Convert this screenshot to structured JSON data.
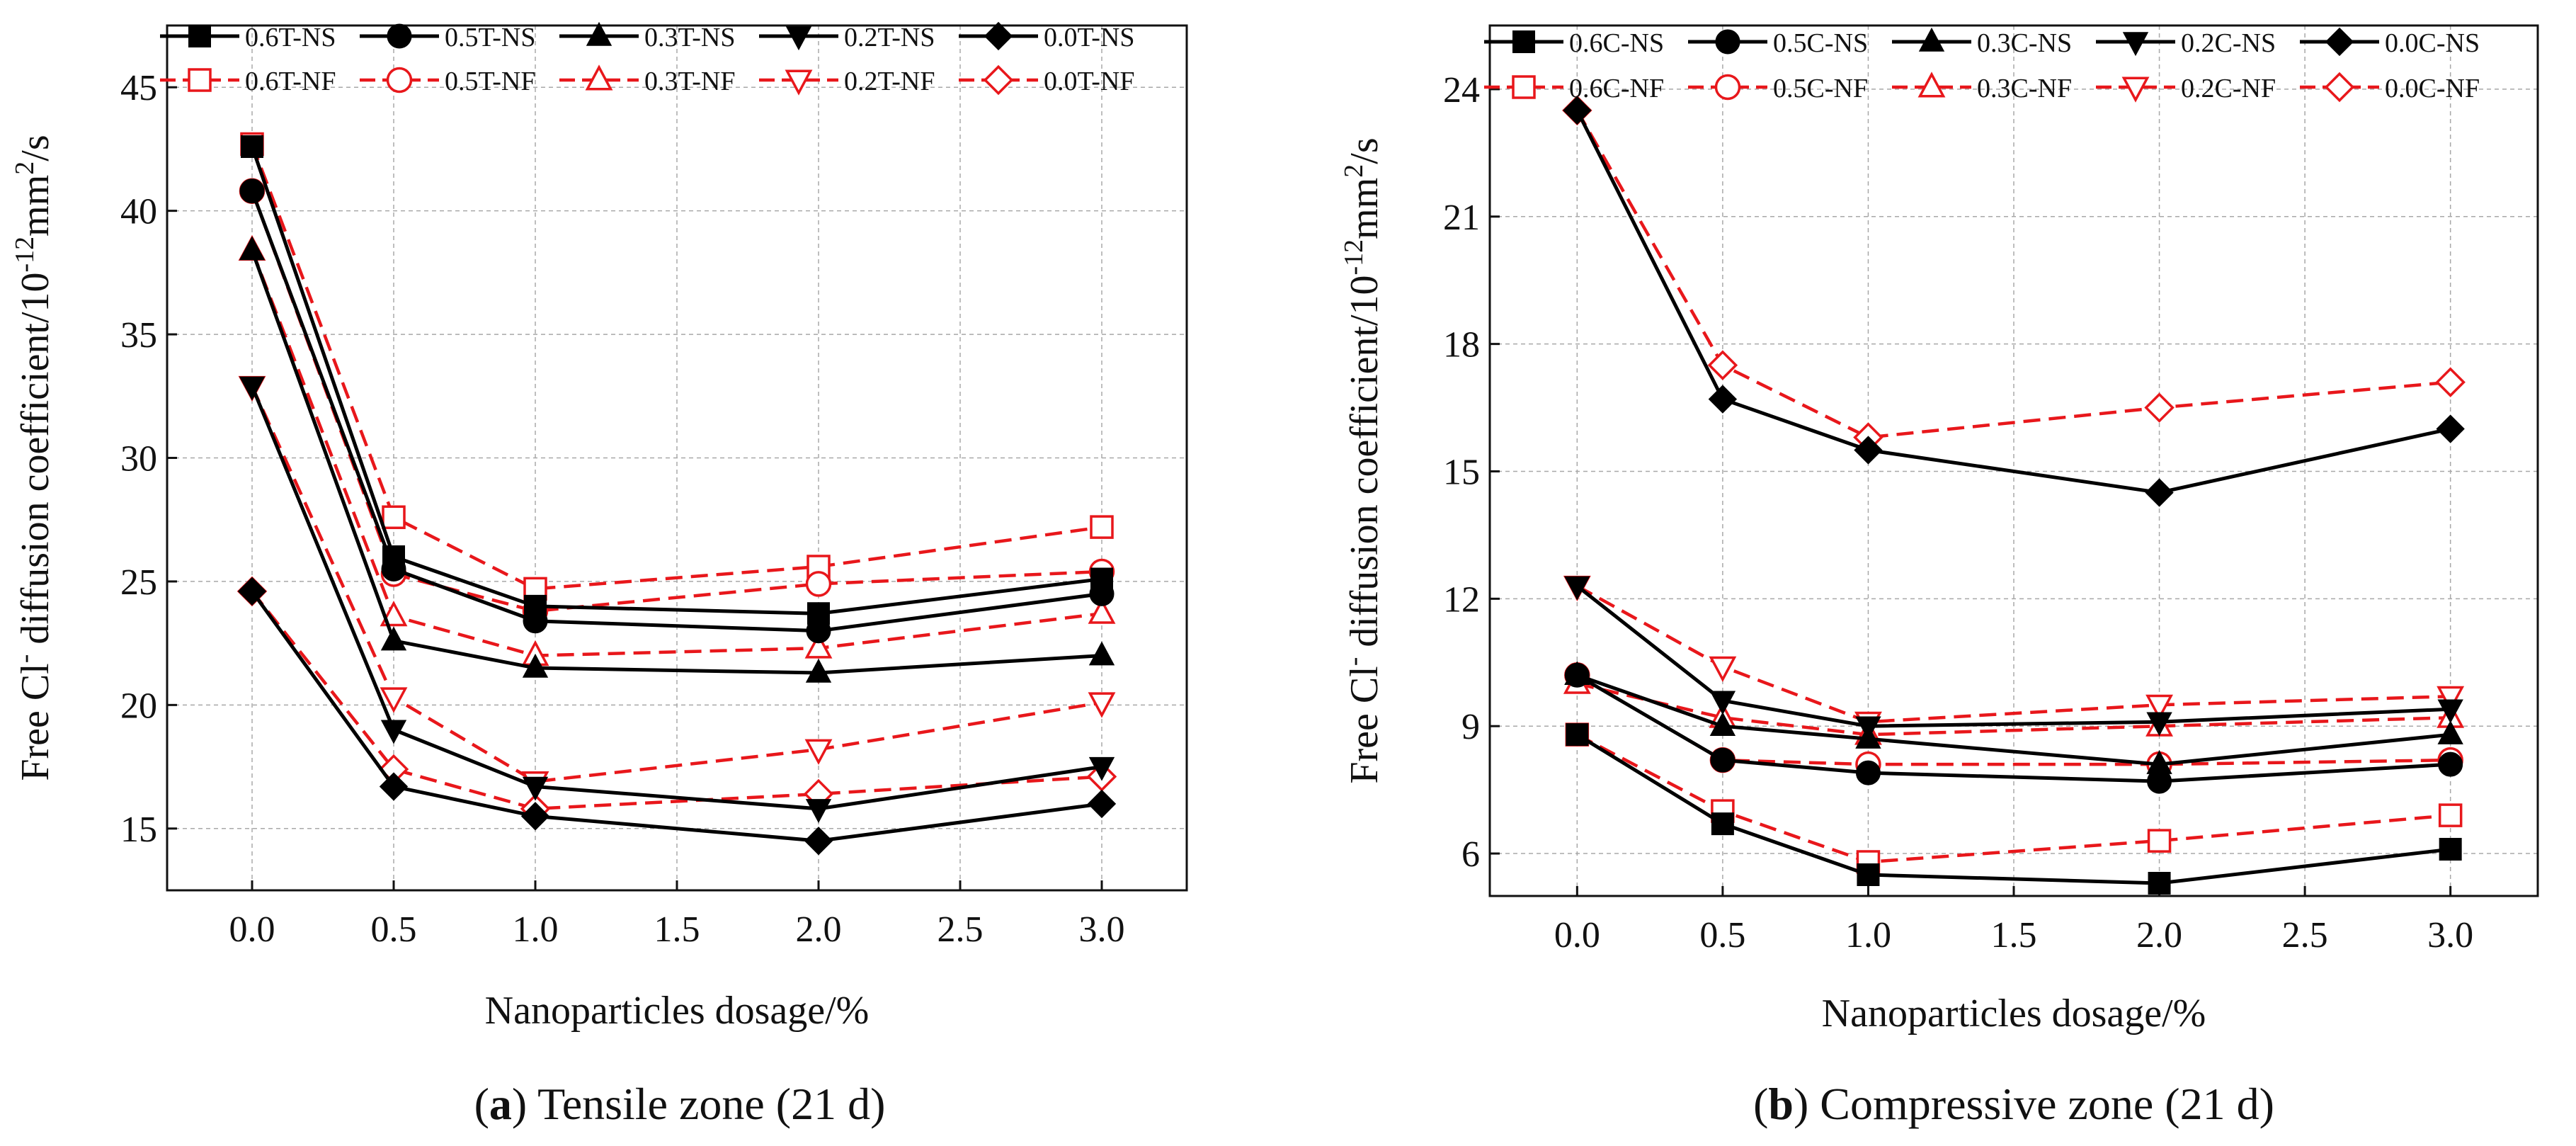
{
  "chart_data": [
    {
      "panel_label": "a",
      "caption": "Tensile zone (21 d)",
      "type": "line",
      "xlabel": "Nanoparticles dosage/%",
      "ylabel_text": "Free Cl",
      "ylabel_sup": "-",
      "ylabel_text2": " diffusion coefficient/10",
      "ylabel_sup2": "-12",
      "ylabel_text3": "mm",
      "ylabel_sup3": "2",
      "ylabel_text4": "/s",
      "x": [
        0.0,
        0.5,
        1.0,
        2.0,
        3.0
      ],
      "xlim": [
        -0.3,
        3.3
      ],
      "xticks": [
        0.0,
        0.5,
        1.0,
        1.5,
        2.0,
        2.5,
        3.0
      ],
      "xtick_labels": [
        "0.0",
        "0.5",
        "1.0",
        "1.5",
        "2.0",
        "2.5",
        "3.0"
      ],
      "ylim": [
        12.5,
        47.5
      ],
      "yticks": [
        15,
        20,
        25,
        30,
        35,
        40,
        45
      ],
      "ytick_labels": [
        "15",
        "20",
        "25",
        "30",
        "35",
        "40",
        "45"
      ],
      "series": [
        {
          "name": "0.6T-NS",
          "marker": "square",
          "style": "solid",
          "values": [
            42.6,
            26.0,
            24.0,
            23.7,
            25.1
          ]
        },
        {
          "name": "0.5T-NS",
          "marker": "circle",
          "style": "solid",
          "values": [
            40.8,
            25.5,
            23.4,
            23.0,
            24.5
          ]
        },
        {
          "name": "0.3T-NS",
          "marker": "triangle",
          "style": "solid",
          "values": [
            38.4,
            22.6,
            21.5,
            21.3,
            22.0
          ]
        },
        {
          "name": "0.2T-NS",
          "marker": "triangle-down",
          "style": "solid",
          "values": [
            32.9,
            19.0,
            16.7,
            15.8,
            17.5
          ]
        },
        {
          "name": "0.0T-NS",
          "marker": "diamond",
          "style": "solid",
          "values": [
            24.6,
            16.7,
            15.5,
            14.5,
            16.0
          ]
        },
        {
          "name": "0.6T-NF",
          "marker": "square",
          "style": "dashed",
          "values": [
            42.7,
            27.6,
            24.7,
            25.6,
            27.2
          ]
        },
        {
          "name": "0.5T-NF",
          "marker": "circle",
          "style": "dashed",
          "values": [
            40.8,
            25.3,
            23.8,
            24.9,
            25.4
          ]
        },
        {
          "name": "0.3T-NF",
          "marker": "triangle",
          "style": "dashed",
          "values": [
            38.4,
            23.6,
            22.0,
            22.3,
            23.7
          ]
        },
        {
          "name": "0.2T-NF",
          "marker": "triangle-down",
          "style": "dashed",
          "values": [
            32.9,
            20.3,
            16.9,
            18.2,
            20.1
          ]
        },
        {
          "name": "0.0T-NF",
          "marker": "diamond",
          "style": "dashed",
          "values": [
            24.6,
            17.4,
            15.8,
            16.4,
            17.1
          ]
        }
      ]
    },
    {
      "panel_label": "b",
      "caption": "Compressive zone (21 d)",
      "type": "line",
      "xlabel": "Nanoparticles dosage/%",
      "ylabel_text": "Free Cl",
      "ylabel_sup": "-",
      "ylabel_text2": " diffusion coefficient/10",
      "ylabel_sup2": "-12",
      "ylabel_text3": "mm",
      "ylabel_sup3": "2",
      "ylabel_text4": "/s",
      "x": [
        0.0,
        0.5,
        1.0,
        2.0,
        3.0
      ],
      "xlim": [
        -0.3,
        3.3
      ],
      "xticks": [
        0.0,
        0.5,
        1.0,
        1.5,
        2.0,
        2.5,
        3.0
      ],
      "xtick_labels": [
        "0.0",
        "0.5",
        "1.0",
        "1.5",
        "2.0",
        "2.5",
        "3.0"
      ],
      "ylim": [
        5.0,
        25.5
      ],
      "yticks": [
        6,
        9,
        12,
        15,
        18,
        21,
        24
      ],
      "ytick_labels": [
        "6",
        "9",
        "12",
        "15",
        "18",
        "21",
        "24"
      ],
      "series": [
        {
          "name": "0.6C-NS",
          "marker": "square",
          "style": "solid",
          "values": [
            8.8,
            6.7,
            5.5,
            5.3,
            6.1
          ]
        },
        {
          "name": "0.5C-NS",
          "marker": "circle",
          "style": "solid",
          "values": [
            10.2,
            8.2,
            7.9,
            7.7,
            8.1
          ]
        },
        {
          "name": "0.3C-NS",
          "marker": "triangle",
          "style": "solid",
          "values": [
            10.2,
            9.0,
            8.7,
            8.1,
            8.8
          ]
        },
        {
          "name": "0.2C-NS",
          "marker": "triangle-down",
          "style": "solid",
          "values": [
            12.3,
            9.6,
            9.0,
            9.1,
            9.4
          ]
        },
        {
          "name": "0.0C-NS",
          "marker": "diamond",
          "style": "solid",
          "values": [
            23.5,
            16.7,
            15.5,
            14.5,
            16.0
          ]
        },
        {
          "name": "0.6C-NF",
          "marker": "square",
          "style": "dashed",
          "values": [
            8.8,
            7.0,
            5.8,
            6.3,
            6.9
          ]
        },
        {
          "name": "0.5C-NF",
          "marker": "circle",
          "style": "dashed",
          "values": [
            10.2,
            8.2,
            8.1,
            8.1,
            8.2
          ]
        },
        {
          "name": "0.3C-NF",
          "marker": "triangle",
          "style": "dashed",
          "values": [
            10.0,
            9.2,
            8.8,
            9.0,
            9.2
          ]
        },
        {
          "name": "0.2C-NF",
          "marker": "triangle-down",
          "style": "dashed",
          "values": [
            12.3,
            10.4,
            9.1,
            9.5,
            9.7
          ]
        },
        {
          "name": "0.0C-NF",
          "marker": "diamond",
          "style": "dashed",
          "values": [
            23.5,
            17.5,
            15.8,
            16.5,
            17.1
          ]
        }
      ]
    }
  ],
  "colors": {
    "solid_series": "#000000",
    "dashed_series": "#e8171b",
    "grid": "#a8a8a8",
    "axis": "#111111"
  }
}
